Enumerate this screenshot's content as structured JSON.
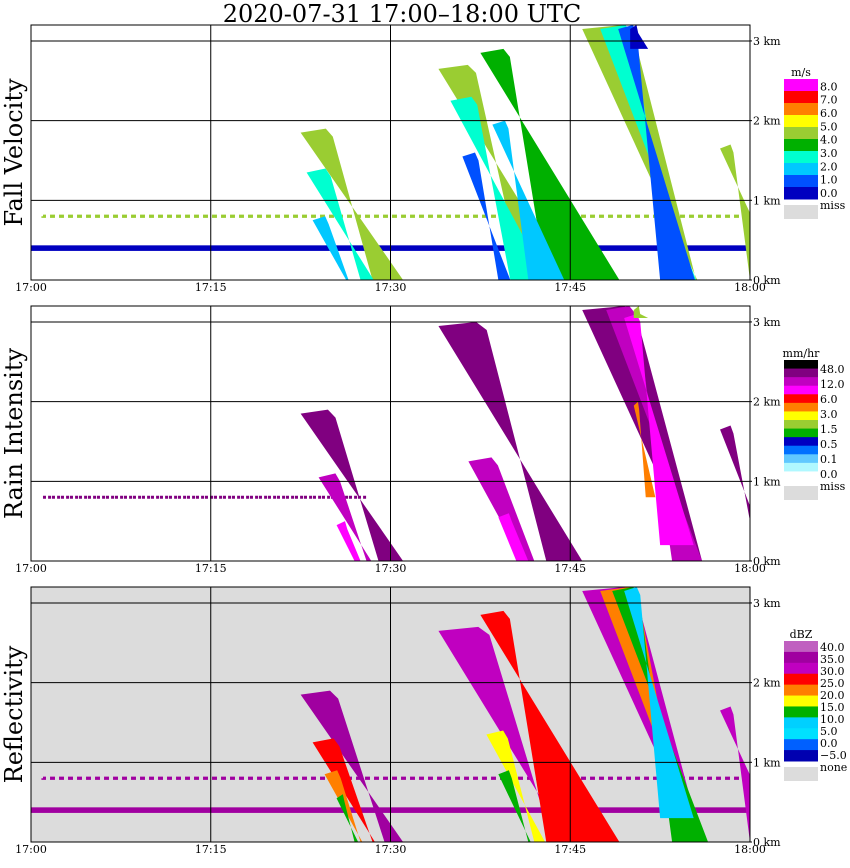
{
  "chart_data": {
    "type": "heatmap",
    "title": "2020-07-31   17:00–18:00 UTC",
    "x_ticks": [
      "17:00",
      "17:15",
      "17:30",
      "17:45",
      "18:00"
    ],
    "y_ticks": [
      "0 km",
      "1 km",
      "2 km",
      "3 km"
    ],
    "x_range_minutes": [
      0,
      60
    ],
    "y_range_km": [
      0,
      3.2
    ],
    "grid": true,
    "panels": [
      {
        "name": "Fall Velocity",
        "colorbar": {
          "unit": "m/s",
          "labels": [
            "8.0",
            "7.0",
            "6.0",
            "5.0",
            "4.0",
            "3.0",
            "2.0",
            "1.0",
            "0.0"
          ],
          "colors": [
            "#ff00ff",
            "#ff0000",
            "#ff7f00",
            "#ffff00",
            "#9acd32",
            "#00b000",
            "#00ffd0",
            "#00c8ff",
            "#0050ff",
            "#0000c0"
          ],
          "missing_label": "miss",
          "missing_color": "#dcdcdc"
        },
        "background": "#ffffff",
        "cells": [
          {
            "t0": 22.5,
            "t1": 28.5,
            "h0": 0,
            "h1": 1.9,
            "tilt": 0.9,
            "level": 4
          },
          {
            "t0": 23.0,
            "t1": 27.5,
            "h0": 0,
            "h1": 1.4,
            "tilt": 0.8,
            "level": 6
          },
          {
            "t0": 23.5,
            "t1": 26.5,
            "h0": 0,
            "h1": 0.8,
            "tilt": 0.7,
            "level": 7
          },
          {
            "t0": 34.0,
            "t1": 41.0,
            "h0": 0,
            "h1": 2.7,
            "tilt": 0.8,
            "level": 4
          },
          {
            "t0": 35.0,
            "t1": 40.0,
            "h0": 0,
            "h1": 2.3,
            "tilt": 0.7,
            "level": 6
          },
          {
            "t0": 36.0,
            "t1": 39.0,
            "h0": 0,
            "h1": 1.6,
            "tilt": 0.5,
            "level": 8
          },
          {
            "t0": 37.5,
            "t1": 43.0,
            "h0": 0,
            "h1": 2.9,
            "tilt": 0.8,
            "level": 5
          },
          {
            "t0": 38.5,
            "t1": 41.5,
            "h0": 0,
            "h1": 2.0,
            "tilt": 0.6,
            "level": 7
          },
          {
            "t0": 46.0,
            "t1": 55.5,
            "h0": 0,
            "h1": 3.2,
            "tilt": 0.6,
            "level": 4
          },
          {
            "t0": 47.5,
            "t1": 53.5,
            "h0": 0,
            "h1": 3.2,
            "tilt": 0.5,
            "level": 6
          },
          {
            "t0": 49.0,
            "t1": 52.5,
            "h0": 0,
            "h1": 3.2,
            "tilt": 0.4,
            "level": 8
          },
          {
            "t0": 50.0,
            "t1": 51.5,
            "h0": 2.9,
            "h1": 3.2,
            "tilt": 0.0,
            "level": 9
          },
          {
            "t0": 57.5,
            "t1": 60.0,
            "h0": 0,
            "h1": 1.7,
            "tilt": 0.6,
            "level": 4
          }
        ],
        "bands": [
          {
            "h": 0.4,
            "t0": 0,
            "t1": 60,
            "level": 9,
            "thick": 0.07
          },
          {
            "h": 0.8,
            "t0": 1,
            "t1": 60,
            "level": 4,
            "thick": 0.04,
            "dotted": true
          }
        ]
      },
      {
        "name": "Rain Intensity",
        "colorbar": {
          "unit": "mm/hr",
          "labels": [
            "48.0",
            "12.0",
            "6.0",
            "3.0",
            "1.5",
            "0.5",
            "0.1",
            "0.0"
          ],
          "colors": [
            "#000000",
            "#800080",
            "#c000c0",
            "#ff00ff",
            "#ff0000",
            "#ff7f00",
            "#ffff00",
            "#9acd32",
            "#00b000",
            "#0000c0",
            "#0070ff",
            "#60c8ff",
            "#b0f8ff",
            "#ffffff"
          ],
          "missing_label": "miss",
          "missing_color": "#dcdcdc"
        },
        "background": "#ffffff",
        "cells": [
          {
            "t0": 22.5,
            "t1": 29.0,
            "h0": 0,
            "h1": 1.9,
            "tilt": 0.9,
            "level": 1
          },
          {
            "t0": 24.0,
            "t1": 28.0,
            "h0": 0,
            "h1": 1.1,
            "tilt": 0.8,
            "level": 2
          },
          {
            "t0": 25.5,
            "t1": 27.5,
            "h0": 0,
            "h1": 0.5,
            "tilt": 0.6,
            "level": 3
          },
          {
            "t0": 34.0,
            "t1": 43.0,
            "h0": 0,
            "h1": 3.0,
            "tilt": 0.8,
            "level": 1
          },
          {
            "t0": 36.5,
            "t1": 42.0,
            "h0": 0,
            "h1": 1.3,
            "tilt": 0.7,
            "level": 2
          },
          {
            "t0": 39.0,
            "t1": 41.5,
            "h0": 0,
            "h1": 0.6,
            "tilt": 0.5,
            "level": 3
          },
          {
            "t0": 46.0,
            "t1": 56.0,
            "h0": 0,
            "h1": 3.2,
            "tilt": 0.6,
            "level": 1
          },
          {
            "t0": 48.0,
            "t1": 53.5,
            "h0": 0,
            "h1": 3.2,
            "tilt": 0.5,
            "level": 2
          },
          {
            "t0": 49.5,
            "t1": 52.5,
            "h0": 0.2,
            "h1": 3.1,
            "tilt": 0.4,
            "level": 3
          },
          {
            "t0": 50.3,
            "t1": 51.3,
            "h0": 0.8,
            "h1": 2.0,
            "tilt": 0.3,
            "level": 5
          },
          {
            "t0": 50.3,
            "t1": 51.5,
            "h0": 3.05,
            "h1": 3.2,
            "tilt": 0.0,
            "level": 7
          },
          {
            "t0": 57.5,
            "t1": 60.0,
            "h0": 0.5,
            "h1": 1.7,
            "tilt": 0.5,
            "level": 1
          }
        ],
        "bands": [
          {
            "h": 0.8,
            "t0": 1,
            "t1": 28,
            "level": 1,
            "thick": 0.03,
            "dotted": true
          }
        ]
      },
      {
        "name": "Reflectivity",
        "colorbar": {
          "unit": "dBZ",
          "labels": [
            "40.0",
            "35.0",
            "30.0",
            "25.0",
            "20.0",
            "15.0",
            "10.0",
            "5.0",
            "0.0",
            "−5.0"
          ],
          "colors": [
            "#c060c0",
            "#a000a0",
            "#c000c0",
            "#ff0000",
            "#ff7f00",
            "#ffff00",
            "#00b000",
            "#00d0ff",
            "#00e0ff",
            "#0060ff",
            "#0000b0"
          ],
          "missing_label": "none",
          "missing_color": "#dcdcdc"
        },
        "background": "#dcdcdc",
        "cells": [
          {
            "t0": 22.5,
            "t1": 29.5,
            "h0": 0,
            "h1": 1.9,
            "tilt": 0.9,
            "level": 1
          },
          {
            "t0": 23.5,
            "t1": 28.5,
            "h0": 0,
            "h1": 1.3,
            "tilt": 0.8,
            "level": 3
          },
          {
            "t0": 24.5,
            "t1": 27.5,
            "h0": 0,
            "h1": 0.9,
            "tilt": 0.7,
            "level": 4
          },
          {
            "t0": 25.5,
            "t1": 27.0,
            "h0": 0,
            "h1": 0.6,
            "tilt": 0.6,
            "level": 6
          },
          {
            "t0": 34.0,
            "t1": 43.5,
            "h0": 0,
            "h1": 2.7,
            "tilt": 0.8,
            "level": 2
          },
          {
            "t0": 37.5,
            "t1": 43.0,
            "h0": 0,
            "h1": 2.9,
            "tilt": 0.8,
            "level": 3
          },
          {
            "t0": 38.0,
            "t1": 42.0,
            "h0": 0,
            "h1": 1.4,
            "tilt": 0.7,
            "level": 5
          },
          {
            "t0": 39.0,
            "t1": 41.5,
            "h0": 0,
            "h1": 0.9,
            "tilt": 0.6,
            "level": 6
          },
          {
            "t0": 46.0,
            "t1": 56.0,
            "h0": 0,
            "h1": 3.2,
            "tilt": 0.6,
            "level": 2
          },
          {
            "t0": 47.5,
            "t1": 54.5,
            "h0": 0,
            "h1": 3.2,
            "tilt": 0.5,
            "level": 4
          },
          {
            "t0": 48.5,
            "t1": 53.5,
            "h0": 0,
            "h1": 3.2,
            "tilt": 0.5,
            "level": 6
          },
          {
            "t0": 49.5,
            "t1": 52.5,
            "h0": 0.3,
            "h1": 3.2,
            "tilt": 0.4,
            "level": 7
          },
          {
            "t0": 57.5,
            "t1": 60.0,
            "h0": 0,
            "h1": 1.7,
            "tilt": 0.6,
            "level": 2
          }
        ],
        "bands": [
          {
            "h": 0.4,
            "t0": 0,
            "t1": 60,
            "level": 1,
            "thick": 0.07
          },
          {
            "h": 0.8,
            "t0": 1,
            "t1": 60,
            "level": 1,
            "thick": 0.04,
            "dotted": true
          }
        ]
      }
    ]
  }
}
